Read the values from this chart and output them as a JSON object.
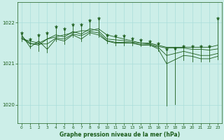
{
  "title": "Graphe pression niveau de la mer (hPa)",
  "bg_color": "#cceee8",
  "grid_color": "#aaddda",
  "line_color": "#1a5c1a",
  "marker_color": "#1a5c1a",
  "xlim": [
    -0.5,
    23.5
  ],
  "ylim": [
    1019.55,
    1022.5
  ],
  "yticks": [
    1020,
    1021,
    1022
  ],
  "xticks": [
    0,
    1,
    2,
    3,
    4,
    5,
    6,
    7,
    8,
    9,
    10,
    11,
    12,
    13,
    14,
    15,
    16,
    17,
    18,
    19,
    20,
    21,
    22,
    23
  ],
  "series": [
    [
      1021.6,
      1021.55,
      1021.5,
      1021.6,
      1021.65,
      1021.7,
      1021.75,
      1021.8,
      1021.8,
      1021.85,
      1021.7,
      1021.65,
      1021.6,
      1021.55,
      1021.5,
      1021.5,
      1021.45,
      1021.4,
      1021.4,
      1021.4,
      1021.4,
      1021.4,
      1021.4,
      1021.45
    ],
    [
      1021.7,
      1021.4,
      1021.55,
      1021.35,
      1021.6,
      1021.55,
      1021.7,
      1021.6,
      1021.75,
      1021.7,
      1021.55,
      1021.5,
      1021.5,
      1021.5,
      1021.45,
      1021.45,
      1021.4,
      1021.2,
      1021.25,
      1021.3,
      1021.25,
      1021.2,
      1021.2,
      1021.25
    ],
    [
      1021.65,
      1021.5,
      1021.45,
      1021.6,
      1021.7,
      1021.65,
      1021.78,
      1021.72,
      1021.85,
      1021.8,
      1021.6,
      1021.58,
      1021.56,
      1021.52,
      1021.5,
      1021.48,
      1021.42,
      1021.38,
      1021.38,
      1021.38,
      1021.35,
      1021.35,
      1021.33,
      1021.36
    ],
    [
      1021.62,
      1021.48,
      1021.48,
      1021.48,
      1021.62,
      1021.6,
      1021.72,
      1021.68,
      1021.78,
      1021.75,
      1021.56,
      1021.52,
      1021.52,
      1021.5,
      1021.46,
      1021.46,
      1021.36,
      1021.0,
      1021.1,
      1021.2,
      1021.18,
      1021.12,
      1021.12,
      1021.18
    ]
  ],
  "peaks": [
    [
      0,
      1021.75
    ],
    [
      1,
      1021.6
    ],
    [
      2,
      1021.7
    ],
    [
      3,
      1021.75
    ],
    [
      4,
      1021.9
    ],
    [
      5,
      1021.85
    ],
    [
      6,
      1021.95
    ],
    [
      7,
      1021.95
    ],
    [
      8,
      1022.05
    ],
    [
      9,
      1022.1
    ],
    [
      10,
      1021.7
    ],
    [
      11,
      1021.68
    ],
    [
      12,
      1021.68
    ],
    [
      13,
      1021.62
    ],
    [
      14,
      1021.58
    ],
    [
      15,
      1021.55
    ],
    [
      16,
      1021.5
    ],
    [
      17,
      1021.35
    ],
    [
      18,
      1021.38
    ],
    [
      19,
      1021.42
    ],
    [
      20,
      1021.42
    ],
    [
      21,
      1021.42
    ],
    [
      22,
      1021.42
    ],
    [
      23,
      1022.1
    ]
  ],
  "troughs": [
    [
      0,
      1021.55
    ],
    [
      1,
      1021.38
    ],
    [
      2,
      1021.3
    ],
    [
      3,
      1021.28
    ],
    [
      4,
      1021.55
    ],
    [
      5,
      1021.48
    ],
    [
      6,
      1021.65
    ],
    [
      7,
      1021.55
    ],
    [
      8,
      1021.7
    ],
    [
      9,
      1021.65
    ],
    [
      10,
      1021.5
    ],
    [
      11,
      1021.45
    ],
    [
      12,
      1021.45
    ],
    [
      13,
      1021.44
    ],
    [
      14,
      1021.42
    ],
    [
      15,
      1021.42
    ],
    [
      16,
      1021.3
    ],
    [
      17,
      1019.98
    ],
    [
      18,
      1020.02
    ],
    [
      19,
      1021.08
    ],
    [
      20,
      1021.05
    ],
    [
      21,
      1021.05
    ],
    [
      22,
      1021.05
    ],
    [
      23,
      1021.1
    ]
  ]
}
